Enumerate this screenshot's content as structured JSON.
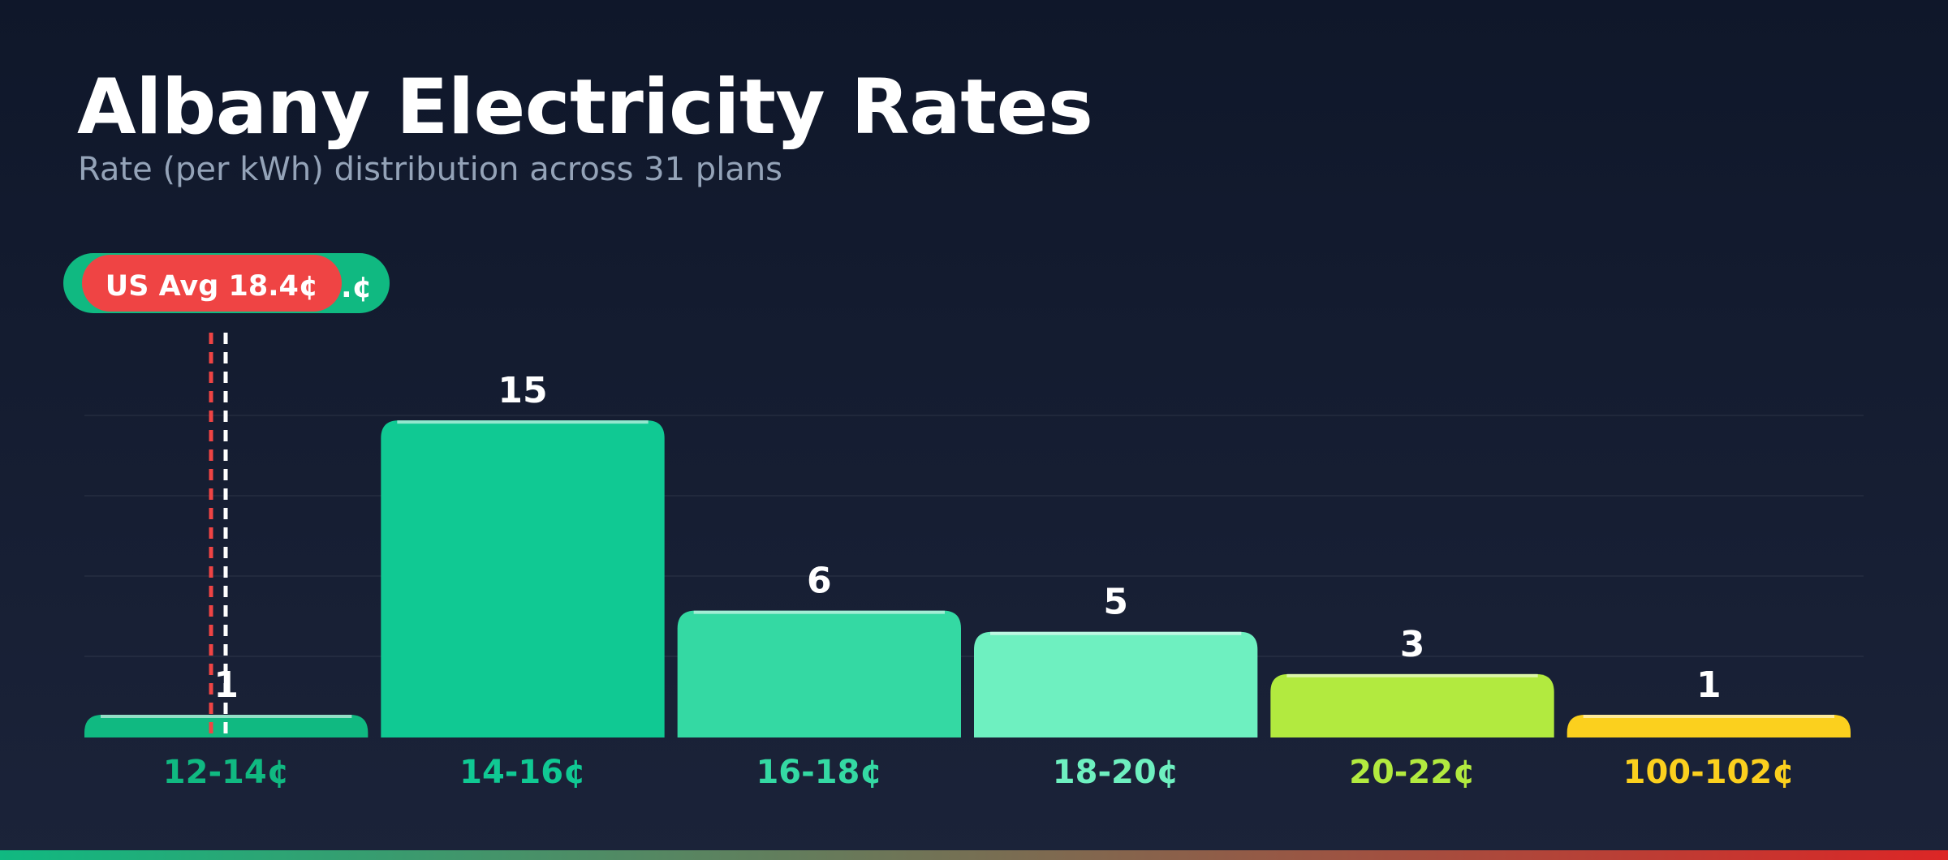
{
  "chart_data": {
    "type": "bar",
    "title": "Albany Electricity Rates",
    "subtitle": "Rate (per kWh) distribution across 31 plans",
    "categories": [
      "12-14¢",
      "14-16¢",
      "16-18¢",
      "18-20¢",
      "20-22¢",
      "100-102¢"
    ],
    "values": [
      1,
      15,
      6,
      5,
      3,
      1
    ],
    "xlabel": "",
    "ylabel": "",
    "ylim": [
      0,
      18
    ],
    "grid": true,
    "reference_lines": [
      {
        "label": "US Avg 18.4¢",
        "value": 18.4,
        "color": "#ef4444",
        "style": "dashed"
      },
      {
        "label": "",
        "value_label_visible": "¢",
        "color": "#10b981",
        "line_color": "#ffffff",
        "style": "dashed"
      }
    ]
  },
  "colors": {
    "bars": [
      "#10b981",
      "#10c993",
      "#34d9a3",
      "#6ef0c0",
      "#b2ea3f",
      "#fbd01e"
    ],
    "tick_labels": [
      "#10b981",
      "#10c993",
      "#34d9a3",
      "#6ef0c0",
      "#b2ea3f",
      "#fbd01e"
    ],
    "us_avg": "#ef4444",
    "albany_badge": "#10b981",
    "gradient_start": "#10b981",
    "gradient_end": "#dc2626"
  }
}
